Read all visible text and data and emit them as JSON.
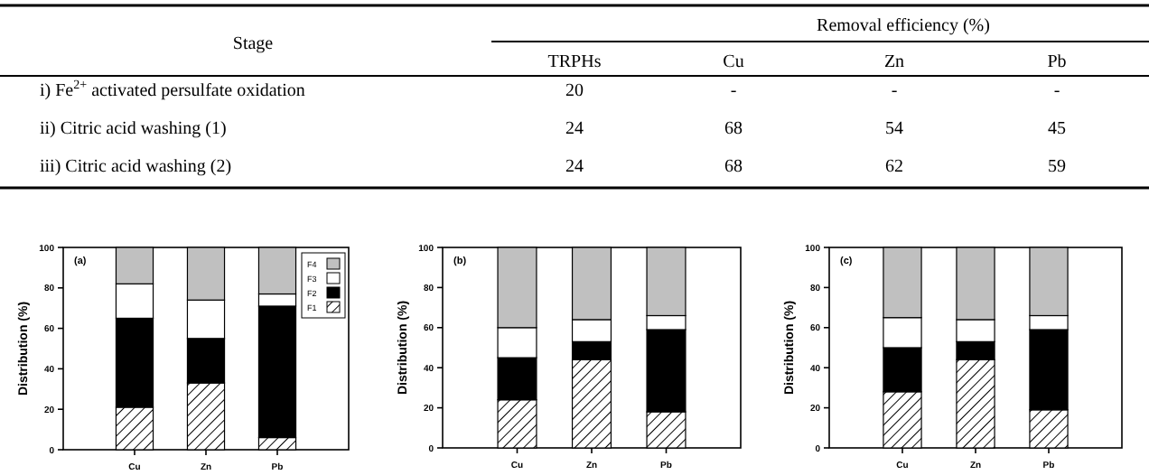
{
  "chart_data": [
    {
      "type": "other",
      "title": "Removal efficiency (%)",
      "ylabel": "Stage",
      "categories": [
        "TRPHs",
        "Cu",
        "Zn",
        "Pb"
      ],
      "y_categories": [
        "i) Fe$^{2+}$ activated persulfate oxidation",
        "ii) Citric acid washing (1)",
        "iii) Citric acid washing (2)"
      ],
      "cell_labels": [
        [
          "20",
          "-",
          "-",
          "-"
        ],
        [
          "24",
          "68",
          "54",
          "45"
        ],
        [
          "24",
          "68",
          "62",
          "59"
        ]
      ]
    },
    {
      "type": "bar",
      "stacked": true,
      "ylabel": "Distribution (%)",
      "categories": [
        "Cu",
        "Zn",
        "Pb"
      ],
      "ylim": [
        0,
        100
      ],
      "yticks": [
        0,
        20,
        40,
        60,
        80,
        100
      ],
      "legend": "top right",
      "annotations": [
        "(a)"
      ],
      "series": [
        {
          "name": "F1",
          "color": "#000000",
          "values": [
            21,
            33,
            6
          ]
        },
        {
          "name": "F2",
          "color": "#000000",
          "values": [
            44,
            22,
            65
          ]
        },
        {
          "name": "F3",
          "color": "#ffffff",
          "values": [
            17,
            19,
            6
          ]
        },
        {
          "name": "F4",
          "color": "#c0c0c0",
          "values": [
            18,
            26,
            23
          ]
        }
      ]
    },
    {
      "type": "bar",
      "stacked": true,
      "ylabel": "Distribution (%)",
      "categories": [
        "Cu",
        "Zn",
        "Pb"
      ],
      "ylim": [
        0,
        100
      ],
      "yticks": [
        0,
        20,
        40,
        60,
        80,
        100
      ],
      "annotations": [
        "(b)"
      ],
      "series": [
        {
          "color": "#000000",
          "values": [
            24,
            44,
            18
          ]
        },
        {
          "color": "#000000",
          "values": [
            21,
            9,
            41
          ]
        },
        {
          "color": "#ffffff",
          "values": [
            15,
            11,
            7
          ]
        },
        {
          "color": "#c0c0c0",
          "values": [
            40,
            36,
            34
          ]
        }
      ]
    },
    {
      "type": "bar",
      "stacked": true,
      "ylabel": "Distribution (%)",
      "categories": [
        "Cu",
        "Zn",
        "Pb"
      ],
      "ylim": [
        0,
        100
      ],
      "yticks": [
        0,
        20,
        40,
        60,
        80,
        100
      ],
      "annotations": [
        "(c)"
      ],
      "series": [
        {
          "color": "#000000",
          "values": [
            28,
            44,
            19
          ]
        },
        {
          "color": "#000000",
          "values": [
            22,
            9,
            40
          ]
        },
        {
          "color": "#ffffff",
          "values": [
            15,
            11,
            7
          ]
        },
        {
          "color": "#c0c0c0",
          "values": [
            35,
            36,
            34
          ]
        }
      ]
    }
  ]
}
